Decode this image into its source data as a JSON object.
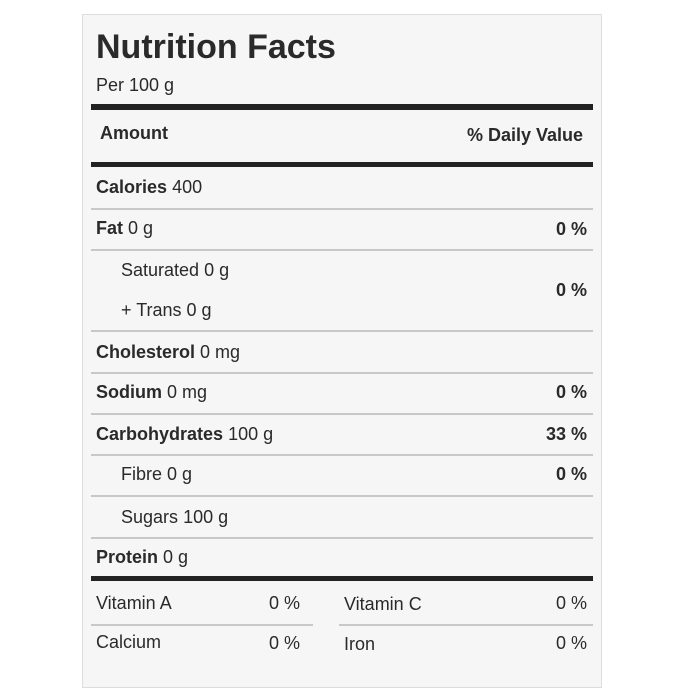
{
  "header": {
    "title": "Nutrition Facts",
    "serving": "Per 100 g"
  },
  "columns": {
    "amount": "Amount",
    "daily_value": "% Daily Value"
  },
  "rows": [
    {
      "name": "Calories",
      "amount": "400"
    },
    {
      "name": "Fat",
      "amount": "0 g",
      "dv": "0 %"
    },
    {
      "lines": [
        {
          "name": "Saturated",
          "amount": "0 g"
        },
        {
          "name": "+ Trans",
          "amount": "0 g"
        }
      ],
      "dv": "0 %"
    },
    {
      "name": "Cholesterol",
      "amount": "0 mg"
    },
    {
      "name": "Sodium",
      "amount": "0 mg",
      "dv": "0 %"
    },
    {
      "name": "Carbohydrates",
      "amount": "100 g",
      "dv": "33 %"
    },
    {
      "name": "Fibre",
      "amount": "0 g",
      "dv": "0 %"
    },
    {
      "name": "Sugars",
      "amount": "100 g"
    },
    {
      "name": "Protein",
      "amount": "0 g"
    }
  ],
  "vitamins": [
    [
      {
        "name": "Vitamin A",
        "dv": "0 %"
      },
      {
        "name": "Vitamin C",
        "dv": "0 %"
      }
    ],
    [
      {
        "name": "Calcium",
        "dv": "0 %"
      },
      {
        "name": "Iron",
        "dv": "0 %"
      }
    ]
  ]
}
